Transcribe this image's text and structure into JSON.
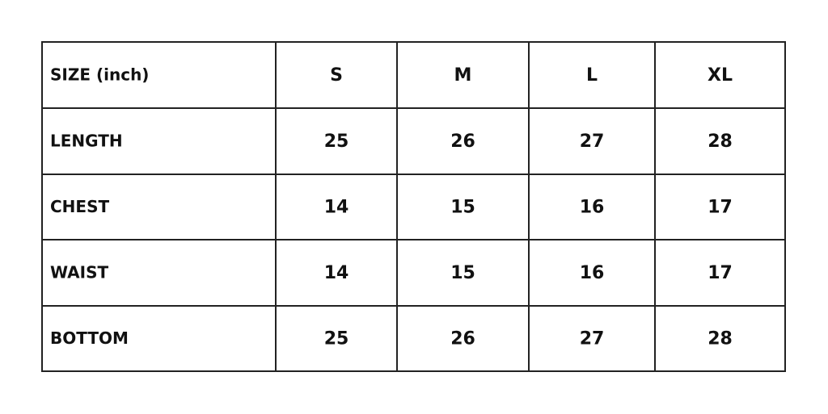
{
  "table": {
    "header": [
      "SIZE (inch)",
      "S",
      "M",
      "L",
      "XL"
    ],
    "rows": [
      [
        "LENGTH",
        25,
        26,
        27,
        28
      ],
      [
        "CHEST",
        14,
        15,
        16,
        17
      ],
      [
        "WAIST",
        14,
        15,
        16,
        17
      ],
      [
        "BOTTOM",
        25,
        26,
        27,
        28
      ]
    ]
  }
}
